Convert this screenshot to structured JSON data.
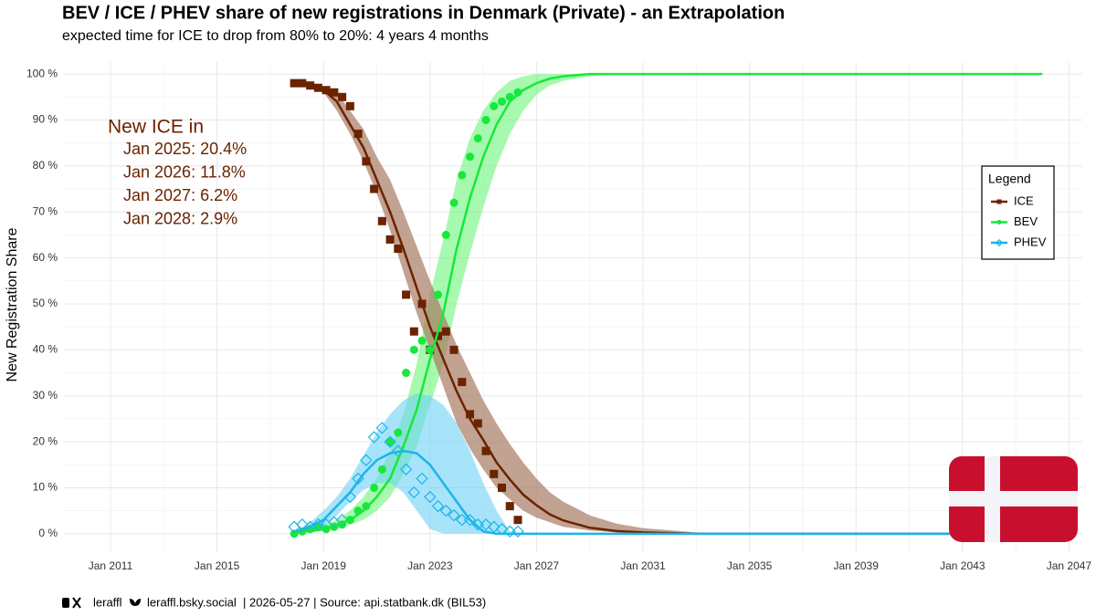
{
  "chart_data": {
    "type": "line",
    "title": "BEV / ICE / PHEV share of new registrations in Denmark (Private) - an Extrapolation",
    "subtitle": "expected time for ICE to drop from 80% to 20%: 4 years 4 months",
    "y_label": "New Registration Share",
    "legend_title": "Legend",
    "legend_position": "right",
    "grid": true,
    "annotation": {
      "title": "New ICE in",
      "lines": [
        "Jan 2025: 20.4%",
        "Jan 2026: 11.8%",
        "Jan 2027: 6.2%",
        "Jan 2028: 2.9%"
      ]
    },
    "footer": [
      "leraffl",
      "leraffl.bsky.social",
      "| 2026-05-27 | Source: api.statbank.dk (BIL53)"
    ],
    "xlim": [
      2009.25,
      2047.5
    ],
    "xticks": [
      {
        "value": 2011,
        "label": "Jan 2011"
      },
      {
        "value": 2015,
        "label": "Jan 2015"
      },
      {
        "value": 2019,
        "label": "Jan 2019"
      },
      {
        "value": 2023,
        "label": "Jan 2023"
      },
      {
        "value": 2027,
        "label": "Jan 2027"
      },
      {
        "value": 2031,
        "label": "Jan 2031"
      },
      {
        "value": 2035,
        "label": "Jan 2035"
      },
      {
        "value": 2039,
        "label": "Jan 2039"
      },
      {
        "value": 2043,
        "label": "Jan 2043"
      },
      {
        "value": 2047,
        "label": "Jan 2047"
      }
    ],
    "ylim": [
      -4,
      102.6
    ],
    "yticks": [
      {
        "value": 0,
        "label": "0 %"
      },
      {
        "value": 10,
        "label": "10 %"
      },
      {
        "value": 20,
        "label": "20 %"
      },
      {
        "value": 30,
        "label": "30 %"
      },
      {
        "value": 40,
        "label": "40 %"
      },
      {
        "value": 50,
        "label": "50 %"
      },
      {
        "value": 60,
        "label": "60 %"
      },
      {
        "value": 70,
        "label": "70 %"
      },
      {
        "value": 80,
        "label": "80 %"
      },
      {
        "value": 90,
        "label": "90 %"
      },
      {
        "value": 100,
        "label": "100 %"
      }
    ],
    "x": [
      2018,
      2018.5,
      2019,
      2019.5,
      2020,
      2020.5,
      2021,
      2021.5,
      2022,
      2022.5,
      2023,
      2023.5,
      2024,
      2024.5,
      2025,
      2025.5,
      2026,
      2026.5,
      2027,
      2027.5,
      2028,
      2029,
      2030,
      2031,
      2033,
      2036,
      2040,
      2046
    ],
    "obs_x": [
      2017.9,
      2018.2,
      2018.5,
      2018.8,
      2019.1,
      2019.4,
      2019.7,
      2020.0,
      2020.3,
      2020.6,
      2020.9,
      2021.2,
      2021.5,
      2021.8,
      2022.1,
      2022.4,
      2022.7,
      2023.0,
      2023.3,
      2023.6,
      2023.9,
      2024.2,
      2024.5,
      2024.8,
      2025.1,
      2025.4,
      2025.7,
      2026.0,
      2026.3
    ],
    "series": [
      {
        "name": "ICE",
        "color": "#6b2300",
        "band_color": "#a87b62",
        "marker": "square",
        "values": [
          98,
          97.7,
          96.5,
          94,
          89,
          84,
          77,
          70,
          62,
          53.5,
          45,
          38,
          31,
          25,
          20.4,
          15.5,
          11.8,
          8.5,
          6.2,
          4.2,
          2.9,
          1.3,
          0.6,
          0.3,
          0,
          0,
          0,
          0
        ],
        "upper": [
          98,
          98,
          97,
          96,
          92,
          88,
          82,
          77,
          70,
          62.5,
          55,
          48,
          41,
          35,
          29,
          24,
          19.5,
          15.5,
          12,
          9,
          7,
          4,
          2.2,
          1.2,
          0.3,
          0,
          0,
          0
        ],
        "lower": [
          98,
          97.5,
          96,
          92,
          87,
          81,
          74,
          66,
          57,
          48,
          40,
          32,
          24,
          18.5,
          14,
          10,
          7.5,
          5,
          3.5,
          2.5,
          1.5,
          0.7,
          0.3,
          0.1,
          0,
          0,
          0,
          0
        ],
        "observed": [
          98,
          98,
          97.5,
          97,
          96.5,
          96,
          95,
          93,
          87,
          81,
          75,
          68,
          64,
          62,
          52,
          44,
          50,
          40,
          43,
          44,
          40,
          33,
          26,
          24,
          18,
          13,
          10,
          6,
          3
        ]
      },
      {
        "name": "BEV",
        "color": "#17e83a",
        "band_color": "#6cf57c",
        "marker": "circle",
        "values": [
          0.3,
          0.6,
          1,
          2,
          3,
          5,
          8,
          12,
          19,
          27,
          38,
          48,
          62,
          73,
          82,
          89,
          94,
          96.5,
          98,
          99,
          99.5,
          100,
          100,
          100,
          100,
          100,
          100,
          100
        ],
        "upper": [
          0.5,
          1,
          2,
          3,
          5,
          8,
          12,
          18,
          26,
          37,
          52,
          64,
          77,
          86,
          92,
          96,
          98.5,
          99.5,
          100,
          100,
          100,
          100,
          100,
          100,
          100,
          100,
          100,
          100
        ],
        "lower": [
          0.1,
          0.3,
          0.5,
          1,
          2,
          3,
          5,
          8,
          13,
          19,
          28,
          37,
          50,
          61,
          71,
          80,
          87,
          92,
          95.5,
          97.5,
          98.5,
          99.5,
          100,
          100,
          100,
          100,
          100,
          100
        ],
        "observed": [
          0,
          0.5,
          1,
          1.5,
          1,
          1.5,
          2,
          3,
          5,
          6,
          10,
          14,
          20,
          22,
          35,
          40,
          42,
          40,
          52,
          65,
          72,
          78,
          82,
          86,
          90,
          93,
          94,
          95,
          96
        ]
      },
      {
        "name": "PHEV",
        "color": "#1ab4ec",
        "band_color": "#6dd2f7",
        "marker": "diamond",
        "values": [
          0.5,
          1.5,
          3,
          6,
          9,
          13,
          16,
          17.5,
          18,
          17.5,
          15,
          11,
          7,
          3,
          0.5,
          0,
          0,
          0,
          0,
          0,
          0,
          0,
          0,
          0,
          0,
          0,
          0,
          0
        ],
        "upper": [
          0.8,
          2.5,
          5,
          8,
          12,
          17,
          22,
          26,
          29,
          30.5,
          30,
          28,
          24,
          18,
          11,
          5,
          0.5,
          0,
          0,
          0,
          0,
          0,
          0,
          0,
          0,
          0,
          0,
          0
        ],
        "lower": [
          0.2,
          0.8,
          1.5,
          4,
          7,
          9.5,
          11,
          11,
          9,
          5,
          1,
          0,
          0,
          0,
          0,
          0,
          0,
          0,
          0,
          0,
          0,
          0,
          0,
          0,
          0,
          0,
          0,
          0
        ],
        "observed": [
          1.5,
          2,
          1.5,
          2,
          2,
          2.5,
          3,
          8,
          12,
          16,
          21,
          23,
          20,
          18,
          14,
          9,
          12,
          8,
          6,
          5,
          4,
          3,
          3,
          2,
          2,
          1.5,
          1,
          0.5,
          0.5
        ]
      }
    ]
  }
}
